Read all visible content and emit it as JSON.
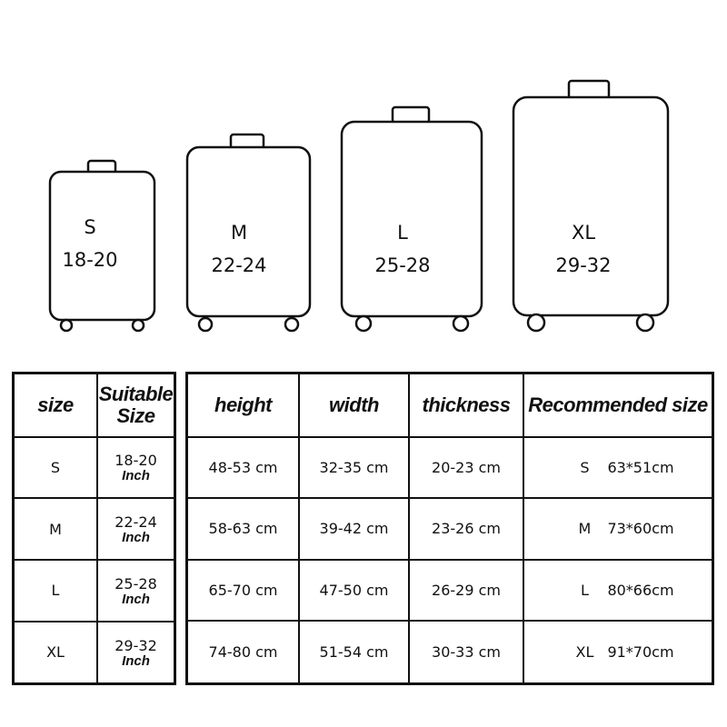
{
  "suitcases": [
    {
      "size": "S",
      "range": "18-20"
    },
    {
      "size": "M",
      "range": "22-24"
    },
    {
      "size": "L",
      "range": "25-28"
    },
    {
      "size": "XL",
      "range": "29-32"
    }
  ],
  "left_table": {
    "headers": [
      "size",
      "Suitable Size"
    ],
    "rows": [
      {
        "size": "S",
        "suitable": "18-20",
        "unit": "Inch"
      },
      {
        "size": "M",
        "suitable": "22-24",
        "unit": "Inch"
      },
      {
        "size": "L",
        "suitable": "25-28",
        "unit": "Inch"
      },
      {
        "size": "XL",
        "suitable": "29-32",
        "unit": "Inch"
      }
    ]
  },
  "right_table": {
    "headers": [
      "height",
      "width",
      "thickness",
      "Recommended size"
    ],
    "rows": [
      {
        "height": "48-53 cm",
        "width": "32-35 cm",
        "thickness": "20-23 cm",
        "rec_size": "S",
        "rec_dims": "63*51cm"
      },
      {
        "height": "58-63 cm",
        "width": "39-42 cm",
        "thickness": "23-26 cm",
        "rec_size": "M",
        "rec_dims": "73*60cm"
      },
      {
        "height": "65-70 cm",
        "width": "47-50 cm",
        "thickness": "26-29 cm",
        "rec_size": "L",
        "rec_dims": "80*66cm"
      },
      {
        "height": "74-80 cm",
        "width": "51-54 cm",
        "thickness": "30-33 cm",
        "rec_size": "XL",
        "rec_dims": "91*70cm"
      }
    ]
  }
}
